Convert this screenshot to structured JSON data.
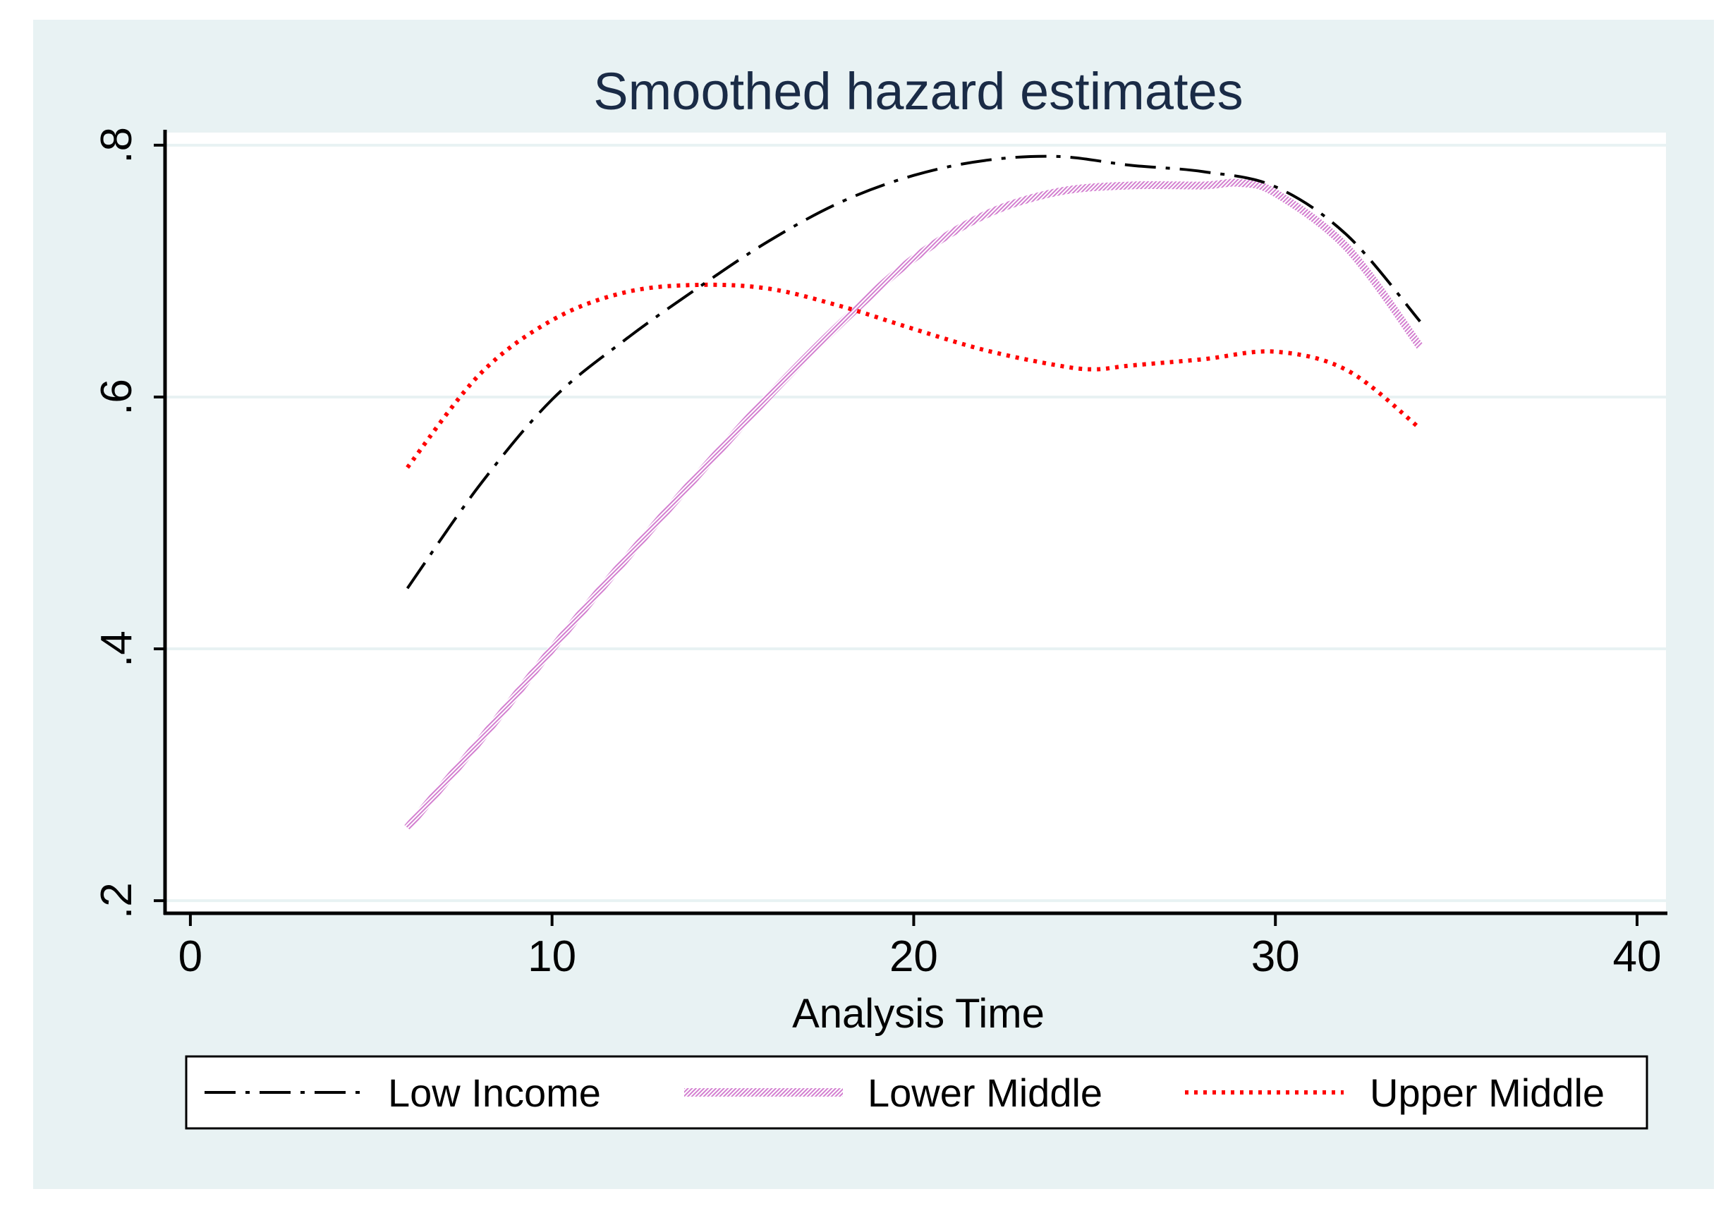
{
  "colors": {
    "outer_background": "#e8f2f3",
    "plot_background": "#ffffff",
    "gridline": "#e8f2f3",
    "axis": "#000000",
    "title": "#1a2b46",
    "low_income": "#000000",
    "lower_middle": "#d37fd0",
    "upper_middle": "#ff0000"
  },
  "chart_data": {
    "type": "line",
    "title": "Smoothed hazard estimates",
    "xlabel": "Analysis Time",
    "ylabel": "",
    "xlim": [
      -0.7,
      40.8
    ],
    "ylim": [
      0.19,
      0.81
    ],
    "xticks": [
      0,
      10,
      20,
      30,
      40
    ],
    "xtick_labels": [
      "0",
      "10",
      "20",
      "30",
      "40"
    ],
    "yticks": [
      0.2,
      0.4,
      0.6,
      0.8
    ],
    "ytick_labels": [
      ".2",
      ".4",
      ".6",
      ".8"
    ],
    "grid": true,
    "legend_position": "bottom",
    "series": [
      {
        "name": "Low Income",
        "style": "dash-dot",
        "x": [
          6,
          8,
          10,
          12,
          14,
          16,
          18,
          20,
          22,
          24,
          26,
          28,
          30,
          32,
          34
        ],
        "values": [
          0.448,
          0.53,
          0.598,
          0.645,
          0.686,
          0.724,
          0.755,
          0.776,
          0.788,
          0.791,
          0.784,
          0.779,
          0.767,
          0.728,
          0.66
        ]
      },
      {
        "name": "Lower Middle",
        "style": "hatched",
        "x": [
          6,
          8,
          10,
          12,
          14,
          16,
          18,
          20,
          22,
          24,
          26,
          28,
          29,
          30,
          32,
          34
        ],
        "values": [
          0.258,
          0.327,
          0.4,
          0.47,
          0.537,
          0.601,
          0.659,
          0.71,
          0.745,
          0.763,
          0.768,
          0.768,
          0.77,
          0.762,
          0.718,
          0.64
        ]
      },
      {
        "name": "Upper Middle",
        "style": "dotted",
        "x": [
          6,
          8,
          10,
          12,
          14,
          16,
          18,
          20,
          22,
          24,
          25,
          26,
          28,
          30,
          32,
          34
        ],
        "values": [
          0.544,
          0.618,
          0.661,
          0.683,
          0.689,
          0.686,
          0.672,
          0.654,
          0.637,
          0.625,
          0.622,
          0.625,
          0.63,
          0.636,
          0.621,
          0.575
        ]
      }
    ]
  }
}
